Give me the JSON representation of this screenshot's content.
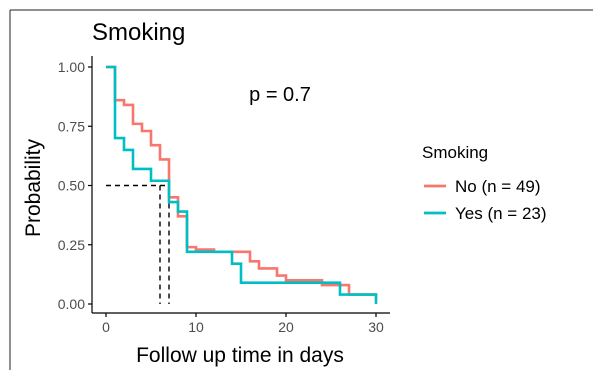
{
  "chart_data": {
    "type": "line",
    "title": "Smoking",
    "xlabel": "Follow up time in days",
    "ylabel": "Probability",
    "xlim": [
      0,
      30
    ],
    "ylim": [
      0,
      1
    ],
    "x_ticks": [
      0,
      10,
      20,
      30
    ],
    "y_ticks": [
      0,
      0.25,
      0.5,
      0.75,
      1
    ],
    "x_tick_labels": [
      "0",
      "10",
      "20",
      "30"
    ],
    "y_tick_labels": [
      "0.00",
      "0.25",
      "0.50",
      "0.75",
      "1.00"
    ],
    "grid": false,
    "annotation": "p = 0.7",
    "legend": {
      "title": "Smoking",
      "position": "right",
      "entries": [
        "No (n = 49)",
        "Yes (n = 23)"
      ]
    },
    "series": [
      {
        "name": "No (n = 49)",
        "color": "#F8766D",
        "x": [
          0,
          1,
          2,
          3,
          4,
          5,
          6,
          7,
          8,
          9,
          10,
          12,
          16,
          17,
          19,
          20,
          24,
          27,
          30
        ],
        "y": [
          1.0,
          0.86,
          0.84,
          0.76,
          0.73,
          0.67,
          0.61,
          0.45,
          0.37,
          0.24,
          0.23,
          0.22,
          0.18,
          0.15,
          0.12,
          0.1,
          0.08,
          0.04,
          0.02
        ]
      },
      {
        "name": "Yes (n = 23)",
        "color": "#00BFC4",
        "x": [
          0,
          1,
          2,
          3,
          5,
          7,
          8,
          9,
          14,
          15,
          20,
          26,
          30
        ],
        "y": [
          1.0,
          0.7,
          0.65,
          0.57,
          0.52,
          0.43,
          0.39,
          0.22,
          0.17,
          0.09,
          0.09,
          0.04,
          0.0
        ]
      }
    ],
    "median_lines": [
      {
        "x": 6,
        "y": 0.5
      },
      {
        "x": 7,
        "y": 0.5
      }
    ]
  }
}
